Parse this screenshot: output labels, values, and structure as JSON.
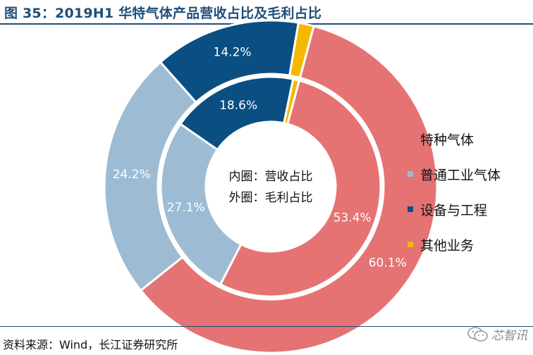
{
  "title": "图 35：2019H1 华特气体产品营收占比及毛利占比",
  "source": "资料来源：Wind，长江证券研究所",
  "watermark": "芯智讯",
  "colors": {
    "title": "#1f4e79",
    "special_gas": "#e57373",
    "general_gas": "#9dbcd4",
    "equipment": "#0b4f82",
    "other": "#f5b800"
  },
  "chart_data": {
    "type": "pie",
    "subtype": "nested-donut",
    "title": "2019H1 华特气体产品营收占比及毛利占比",
    "categories": [
      "特种气体",
      "普通工业气体",
      "设备与工程",
      "其他业务"
    ],
    "series": [
      {
        "name": "内圈：营收占比",
        "ring": "inner",
        "values": [
          53.4,
          27.1,
          18.6,
          0.9
        ],
        "labels": [
          "53.4%",
          "27.1%",
          "18.6%",
          ""
        ]
      },
      {
        "name": "外圈：毛利占比",
        "ring": "outer",
        "values": [
          60.1,
          24.2,
          14.2,
          1.5
        ],
        "labels": [
          "60.1%",
          "24.2%",
          "14.2%",
          ""
        ]
      }
    ],
    "center_labels": [
      "内圈：营收占比",
      "外圈：毛利占比"
    ],
    "legend": [
      "特种气体",
      "普通工业气体",
      "设备与工程",
      "其他业务"
    ],
    "legend_position": "right"
  }
}
